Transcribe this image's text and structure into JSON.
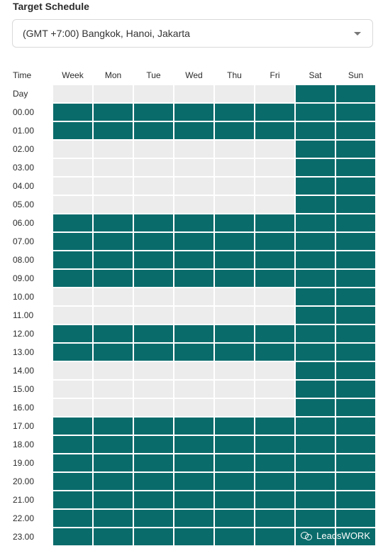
{
  "header": {
    "title": "Target Schedule"
  },
  "timezone": {
    "selected": "(GMT +7:00) Bangkok, Hanoi, Jakarta"
  },
  "schedule": {
    "corner_label": "Time",
    "columns": [
      "Week",
      "Mon",
      "Tue",
      "Wed",
      "Thu",
      "Fri",
      "Sat",
      "Sun"
    ],
    "rows": [
      {
        "label": "Day",
        "active": [
          0,
          0,
          0,
          0,
          0,
          0,
          1,
          1
        ]
      },
      {
        "label": "00.00",
        "active": [
          1,
          1,
          1,
          1,
          1,
          1,
          1,
          1
        ]
      },
      {
        "label": "01.00",
        "active": [
          1,
          1,
          1,
          1,
          1,
          1,
          1,
          1
        ]
      },
      {
        "label": "02.00",
        "active": [
          0,
          0,
          0,
          0,
          0,
          0,
          1,
          1
        ]
      },
      {
        "label": "03.00",
        "active": [
          0,
          0,
          0,
          0,
          0,
          0,
          1,
          1
        ]
      },
      {
        "label": "04.00",
        "active": [
          0,
          0,
          0,
          0,
          0,
          0,
          1,
          1
        ]
      },
      {
        "label": "05.00",
        "active": [
          0,
          0,
          0,
          0,
          0,
          0,
          1,
          1
        ]
      },
      {
        "label": "06.00",
        "active": [
          1,
          1,
          1,
          1,
          1,
          1,
          1,
          1
        ]
      },
      {
        "label": "07.00",
        "active": [
          1,
          1,
          1,
          1,
          1,
          1,
          1,
          1
        ]
      },
      {
        "label": "08.00",
        "active": [
          1,
          1,
          1,
          1,
          1,
          1,
          1,
          1
        ]
      },
      {
        "label": "09.00",
        "active": [
          1,
          1,
          1,
          1,
          1,
          1,
          1,
          1
        ]
      },
      {
        "label": "10.00",
        "active": [
          0,
          0,
          0,
          0,
          0,
          0,
          1,
          1
        ]
      },
      {
        "label": "11.00",
        "active": [
          0,
          0,
          0,
          0,
          0,
          0,
          1,
          1
        ]
      },
      {
        "label": "12.00",
        "active": [
          1,
          1,
          1,
          1,
          1,
          1,
          1,
          1
        ]
      },
      {
        "label": "13.00",
        "active": [
          1,
          1,
          1,
          1,
          1,
          1,
          1,
          1
        ]
      },
      {
        "label": "14.00",
        "active": [
          0,
          0,
          0,
          0,
          0,
          0,
          1,
          1
        ]
      },
      {
        "label": "15.00",
        "active": [
          0,
          0,
          0,
          0,
          0,
          0,
          1,
          1
        ]
      },
      {
        "label": "16.00",
        "active": [
          0,
          0,
          0,
          0,
          0,
          0,
          1,
          1
        ]
      },
      {
        "label": "17.00",
        "active": [
          1,
          1,
          1,
          1,
          1,
          1,
          1,
          1
        ]
      },
      {
        "label": "18.00",
        "active": [
          1,
          1,
          1,
          1,
          1,
          1,
          1,
          1
        ]
      },
      {
        "label": "19.00",
        "active": [
          1,
          1,
          1,
          1,
          1,
          1,
          1,
          1
        ]
      },
      {
        "label": "20.00",
        "active": [
          1,
          1,
          1,
          1,
          1,
          1,
          1,
          1
        ]
      },
      {
        "label": "21.00",
        "active": [
          1,
          1,
          1,
          1,
          1,
          1,
          1,
          1
        ]
      },
      {
        "label": "22.00",
        "active": [
          1,
          1,
          1,
          1,
          1,
          1,
          1,
          1
        ]
      },
      {
        "label": "23.00",
        "active": [
          1,
          1,
          1,
          1,
          1,
          1,
          1,
          1
        ]
      }
    ]
  },
  "colors": {
    "active": "#0a6b6b",
    "inactive": "#ececec"
  },
  "watermark": {
    "text": "LeadsWORK",
    "icon": "wechat-icon"
  }
}
